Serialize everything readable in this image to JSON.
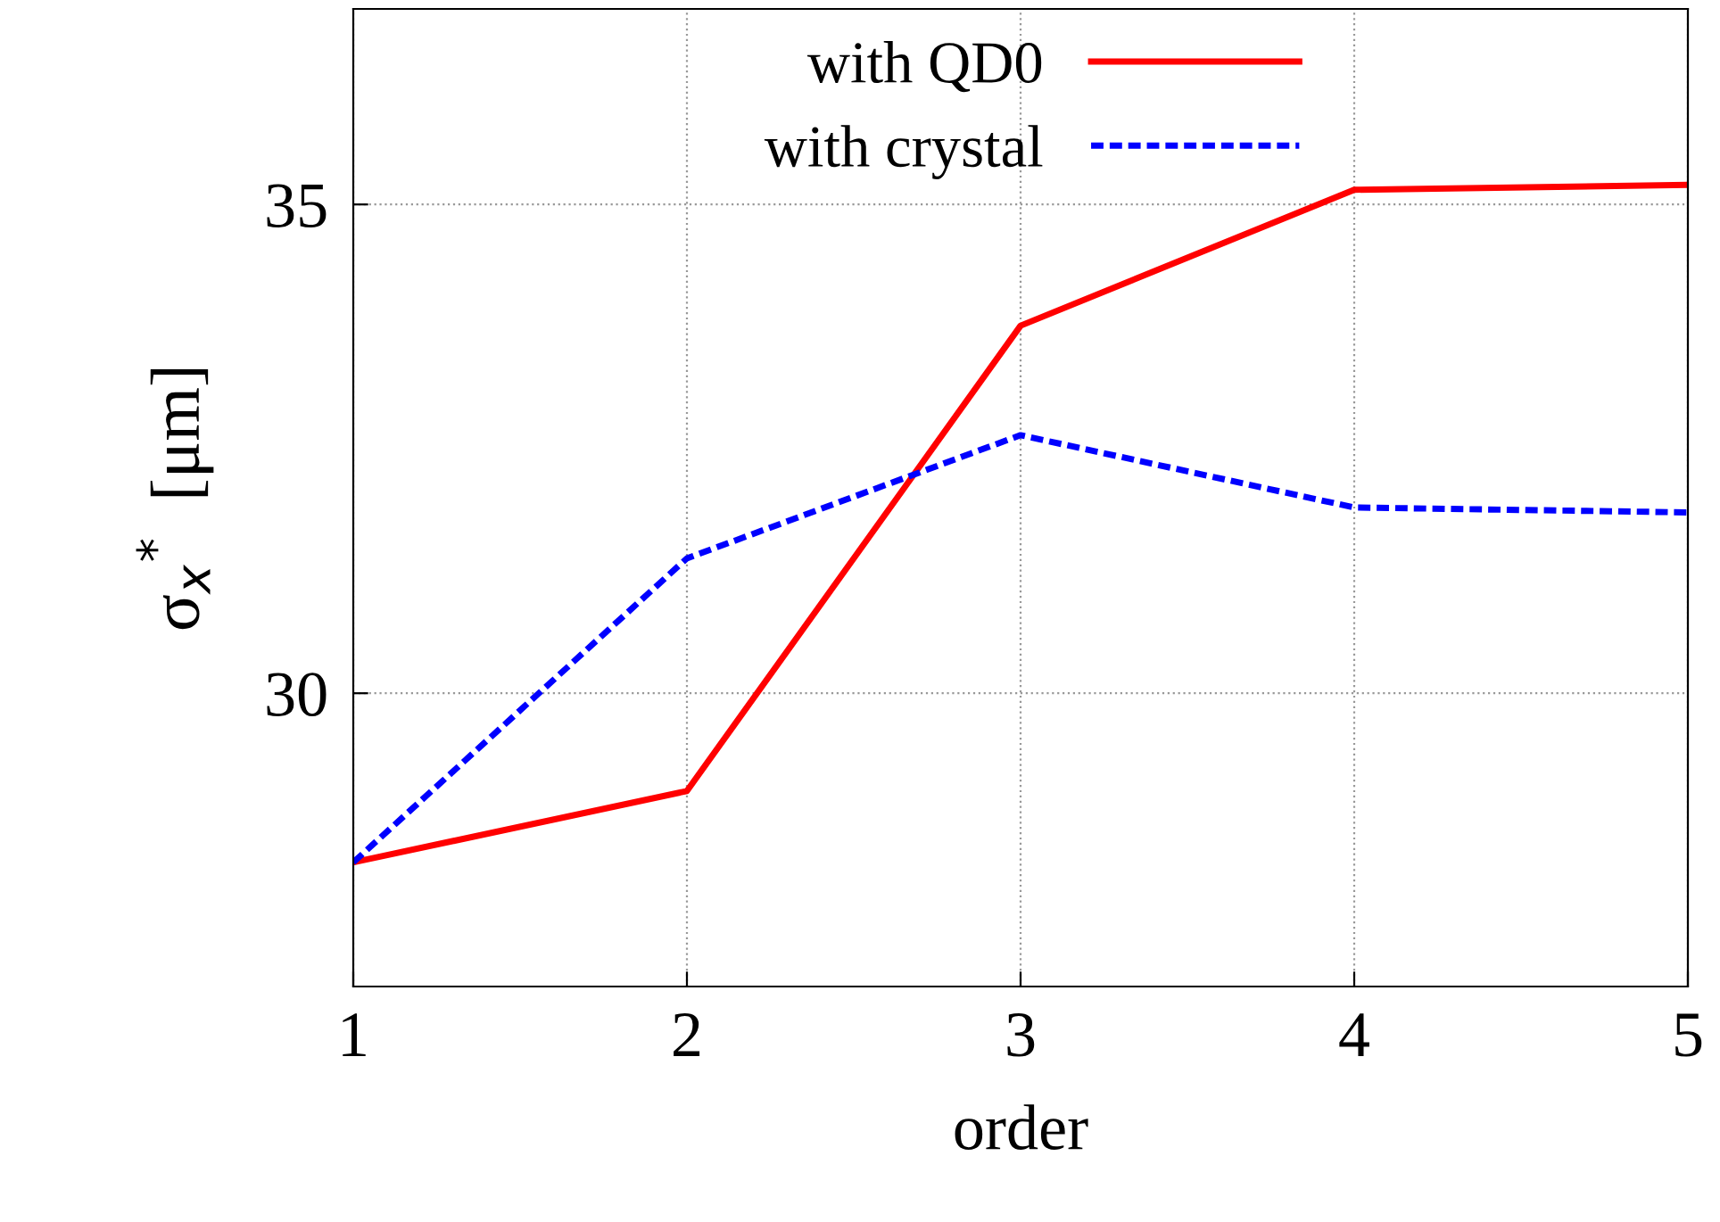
{
  "chart_data": {
    "type": "line",
    "xlabel": "order",
    "ylabel": "σ$_{x}$$^{*}$  [μm]",
    "x": [
      1,
      2,
      3,
      4,
      5
    ],
    "series": [
      {
        "name": "with QD0",
        "color": "#ff0000",
        "line_style": "solid",
        "values": [
          28.27,
          29.0,
          33.76,
          35.15,
          35.2
        ]
      },
      {
        "name": "with crystal",
        "color": "#0000ff",
        "line_style": "dashed",
        "values": [
          28.27,
          31.38,
          32.64,
          31.9,
          31.85
        ]
      }
    ],
    "xlim": [
      1,
      5
    ],
    "xticks": [
      1,
      2,
      3,
      4,
      5
    ],
    "ylim": [
      27,
      37
    ],
    "yticks": [
      30,
      35
    ],
    "grid": true,
    "legend": "top right",
    "marker": "none"
  }
}
